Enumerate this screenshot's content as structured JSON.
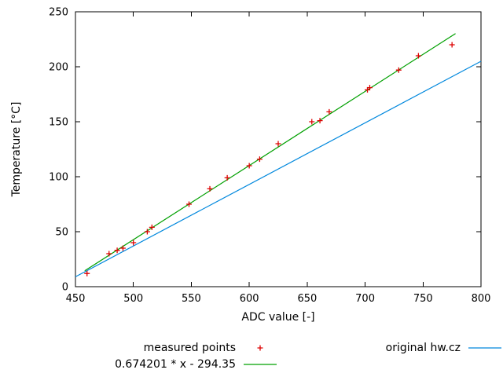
{
  "chart_data": {
    "type": "scatter",
    "title": "",
    "xlabel": "ADC value [-]",
    "ylabel": "Temperature [°C]",
    "xlim": [
      450,
      800
    ],
    "ylim": [
      0,
      250
    ],
    "xticks": [
      450,
      500,
      550,
      600,
      650,
      700,
      750,
      800
    ],
    "yticks": [
      0,
      50,
      100,
      150,
      200,
      250
    ],
    "grid": false,
    "legend_position": "below-plot",
    "series": [
      {
        "name": "measured points",
        "type": "scatter",
        "marker": "plus",
        "color": "#dd0000",
        "points": [
          [
            460,
            12
          ],
          [
            479,
            30
          ],
          [
            486,
            33
          ],
          [
            491,
            35
          ],
          [
            500,
            40
          ],
          [
            512,
            50
          ],
          [
            516,
            54
          ],
          [
            548,
            75
          ],
          [
            566,
            89
          ],
          [
            581,
            99
          ],
          [
            600,
            110
          ],
          [
            609,
            116
          ],
          [
            625,
            130
          ],
          [
            654,
            150
          ],
          [
            661,
            151
          ],
          [
            669,
            159
          ],
          [
            702,
            179
          ],
          [
            704,
            181
          ],
          [
            729,
            197
          ],
          [
            746,
            210
          ],
          [
            775,
            220
          ]
        ]
      },
      {
        "name": "0.674201 * x - 294.35",
        "type": "line",
        "color": "#00a000",
        "slope": 0.674201,
        "intercept": -294.35,
        "x_range": [
          458,
          778
        ]
      },
      {
        "name": "original hw.cz",
        "type": "line",
        "color": "#0088dd",
        "slope": 0.56,
        "intercept": -243,
        "x_range": [
          450,
          800
        ]
      }
    ]
  },
  "axes": {
    "border_color": "#000000",
    "tick_label_color": "#000000"
  }
}
